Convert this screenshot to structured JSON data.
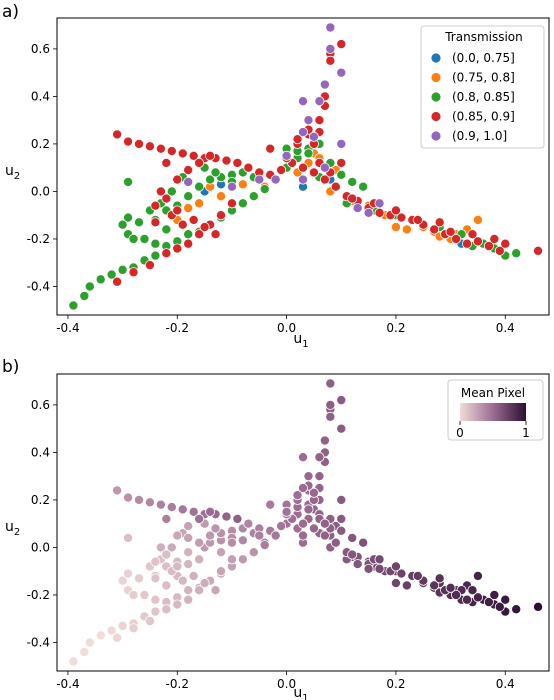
{
  "chart_data": [
    {
      "panel_label": "a)",
      "type": "scatter",
      "xlabel": "u",
      "xlabel_sub": "1",
      "ylabel": "u",
      "ylabel_sub": "2",
      "xlim": [
        -0.42,
        0.48
      ],
      "ylim": [
        -0.52,
        0.73
      ],
      "xticks": [
        "-0.4",
        "-0.2",
        "0.0",
        "0.2",
        "0.4"
      ],
      "yticks": [
        "-0.4",
        "-0.2",
        "0.0",
        "0.2",
        "0.4",
        "0.6"
      ],
      "grid": false,
      "legend": {
        "title": "Transmission",
        "placement": "top-right",
        "entries": [
          "(0.0, 0.75]",
          "(0.75, 0.8]",
          "(0.8, 0.85]",
          "(0.85, 0.9]",
          "(0.9, 1.0]"
        ],
        "colors": [
          "#1f77b4",
          "#ff7f0e",
          "#2ca02c",
          "#d62728",
          "#9467bd"
        ]
      },
      "series": [
        {
          "name": "(0.0, 0.75]",
          "color": "#1f77b4",
          "points": [
            [
              -0.12,
              0.03
            ],
            [
              0.03,
              0.02
            ],
            [
              -0.05,
              0.06
            ],
            [
              0.32,
              -0.22
            ],
            [
              0.08,
              0.05
            ],
            [
              -0.15,
              0.0
            ]
          ]
        },
        {
          "name": "(0.75, 0.8]",
          "color": "#ff7f0e",
          "points": [
            [
              -0.08,
              0.03
            ],
            [
              0.0,
              0.18
            ],
            [
              0.04,
              0.12
            ],
            [
              0.07,
              0.1
            ],
            [
              0.05,
              0.16
            ],
            [
              0.11,
              -0.05
            ],
            [
              0.2,
              -0.15
            ],
            [
              0.22,
              -0.16
            ],
            [
              0.27,
              -0.17
            ],
            [
              0.31,
              -0.18
            ],
            [
              0.35,
              -0.12
            ],
            [
              0.25,
              -0.15
            ],
            [
              0.33,
              -0.16
            ],
            [
              0.36,
              -0.22
            ],
            [
              -0.18,
              -0.07
            ],
            [
              -0.16,
              -0.05
            ],
            [
              -0.1,
              0.06
            ],
            [
              -0.12,
              -0.02
            ],
            [
              0.08,
              0.0
            ],
            [
              0.02,
              0.08
            ],
            [
              0.06,
              0.14
            ],
            [
              0.09,
              0.09
            ],
            [
              0.12,
              -0.04
            ],
            [
              0.15,
              -0.06
            ],
            [
              0.18,
              -0.1
            ],
            [
              0.28,
              -0.19
            ],
            [
              0.3,
              -0.2
            ],
            [
              -0.04,
              0.02
            ],
            [
              -0.2,
              -0.12
            ],
            [
              -0.14,
              0.02
            ]
          ]
        },
        {
          "name": "(0.8, 0.85]",
          "color": "#2ca02c",
          "points": [
            [
              -0.39,
              -0.48
            ],
            [
              -0.37,
              -0.44
            ],
            [
              -0.36,
              -0.4
            ],
            [
              -0.34,
              -0.37
            ],
            [
              -0.32,
              -0.35
            ],
            [
              -0.3,
              -0.33
            ],
            [
              -0.28,
              -0.32
            ],
            [
              -0.26,
              -0.29
            ],
            [
              -0.24,
              -0.27
            ],
            [
              -0.22,
              -0.23
            ],
            [
              -0.2,
              -0.21
            ],
            [
              -0.18,
              -0.18
            ],
            [
              -0.16,
              -0.17
            ],
            [
              -0.14,
              -0.14
            ],
            [
              -0.12,
              -0.11
            ],
            [
              -0.1,
              -0.08
            ],
            [
              -0.08,
              -0.05
            ],
            [
              -0.06,
              -0.02
            ],
            [
              -0.04,
              0.01
            ],
            [
              -0.02,
              0.05
            ],
            [
              0.0,
              0.1
            ],
            [
              0.02,
              0.14
            ],
            [
              0.04,
              0.18
            ],
            [
              -0.29,
              -0.11
            ],
            [
              -0.29,
              -0.18
            ],
            [
              -0.27,
              -0.13
            ],
            [
              -0.25,
              -0.08
            ],
            [
              -0.23,
              -0.05
            ],
            [
              -0.21,
              0.0
            ],
            [
              -0.19,
              0.06
            ],
            [
              -0.3,
              -0.14
            ],
            [
              -0.28,
              -0.2
            ],
            [
              -0.26,
              -0.2
            ],
            [
              -0.24,
              -0.12
            ],
            [
              -0.22,
              -0.08
            ],
            [
              -0.29,
              0.04
            ],
            [
              -0.2,
              -0.06
            ],
            [
              -0.18,
              -0.02
            ],
            [
              -0.16,
              0.02
            ],
            [
              -0.14,
              0.05
            ],
            [
              -0.12,
              0.06
            ],
            [
              -0.1,
              0.07
            ],
            [
              -0.08,
              0.08
            ],
            [
              -0.06,
              0.06
            ],
            [
              -0.15,
              0.1
            ],
            [
              -0.13,
              0.08
            ],
            [
              0.0,
              0.18
            ],
            [
              0.02,
              0.17
            ],
            [
              0.04,
              0.16
            ],
            [
              0.06,
              0.2
            ],
            [
              0.08,
              0.12
            ],
            [
              0.1,
              0.07
            ],
            [
              0.12,
              0.04
            ],
            [
              0.14,
              0.02
            ],
            [
              0.11,
              -0.05
            ],
            [
              0.13,
              -0.07
            ],
            [
              0.16,
              -0.08
            ],
            [
              0.2,
              -0.1
            ],
            [
              0.24,
              -0.12
            ],
            [
              0.28,
              -0.15
            ],
            [
              0.32,
              -0.18
            ],
            [
              0.36,
              -0.22
            ],
            [
              0.4,
              -0.27
            ],
            [
              0.42,
              -0.26
            ],
            [
              0.38,
              -0.24
            ],
            [
              0.34,
              -0.23
            ],
            [
              -0.24,
              -0.22
            ],
            [
              -0.22,
              -0.16
            ],
            [
              -0.1,
              0.04
            ],
            [
              -0.06,
              -0.02
            ],
            [
              0.06,
              0.06
            ],
            [
              0.09,
              0.02
            ]
          ]
        },
        {
          "name": "(0.85, 0.9]",
          "color": "#d62728",
          "points": [
            [
              -0.31,
              0.24
            ],
            [
              -0.29,
              0.21
            ],
            [
              -0.27,
              0.2
            ],
            [
              -0.25,
              0.19
            ],
            [
              -0.23,
              0.18
            ],
            [
              -0.21,
              0.17
            ],
            [
              -0.19,
              0.16
            ],
            [
              -0.17,
              0.15
            ],
            [
              -0.15,
              0.14
            ],
            [
              -0.13,
              0.14
            ],
            [
              -0.11,
              0.13
            ],
            [
              -0.09,
              0.12
            ],
            [
              -0.07,
              0.1
            ],
            [
              -0.05,
              0.08
            ],
            [
              -0.03,
              0.07
            ],
            [
              -0.01,
              0.09
            ],
            [
              0.01,
              0.12
            ],
            [
              0.03,
              0.1
            ],
            [
              0.05,
              0.08
            ],
            [
              0.07,
              0.05
            ],
            [
              0.09,
              0.02
            ],
            [
              0.11,
              -0.02
            ],
            [
              0.13,
              -0.04
            ],
            [
              0.15,
              -0.07
            ],
            [
              0.17,
              -0.09
            ],
            [
              0.19,
              -0.1
            ],
            [
              0.21,
              -0.11
            ],
            [
              0.23,
              -0.12
            ],
            [
              0.25,
              -0.14
            ],
            [
              0.27,
              -0.16
            ],
            [
              0.29,
              -0.18
            ],
            [
              0.31,
              -0.2
            ],
            [
              0.33,
              -0.22
            ],
            [
              0.35,
              -0.21
            ],
            [
              0.37,
              -0.23
            ],
            [
              0.39,
              -0.25
            ],
            [
              0.46,
              -0.25
            ],
            [
              0.08,
              0.58
            ],
            [
              0.08,
              0.55
            ],
            [
              0.07,
              0.4
            ],
            [
              0.07,
              0.36
            ],
            [
              0.06,
              0.3
            ],
            [
              0.04,
              0.24
            ],
            [
              0.02,
              0.2
            ],
            [
              -0.31,
              -0.38
            ],
            [
              -0.28,
              -0.34
            ],
            [
              -0.25,
              -0.31
            ],
            [
              -0.22,
              -0.26
            ],
            [
              -0.2,
              -0.24
            ],
            [
              -0.18,
              -0.22
            ],
            [
              -0.16,
              -0.18
            ],
            [
              -0.14,
              -0.14
            ],
            [
              -0.12,
              -0.1
            ],
            [
              -0.1,
              -0.05
            ],
            [
              -0.2,
              0.05
            ],
            [
              -0.18,
              0.09
            ],
            [
              -0.16,
              0.12
            ],
            [
              -0.14,
              0.15
            ],
            [
              -0.22,
              0.12
            ],
            [
              -0.24,
              -0.13
            ],
            [
              -0.24,
              -0.06
            ],
            [
              -0.21,
              -0.1
            ],
            [
              -0.19,
              -0.14
            ],
            [
              -0.17,
              -0.12
            ],
            [
              -0.15,
              -0.15
            ],
            [
              -0.13,
              -0.18
            ],
            [
              -0.23,
              0.0
            ],
            [
              -0.22,
              -0.03
            ],
            [
              -0.2,
              -0.08
            ],
            [
              0.0,
              0.14
            ],
            [
              0.02,
              0.22
            ],
            [
              0.05,
              0.2
            ],
            [
              0.06,
              0.12
            ],
            [
              0.08,
              0.08
            ],
            [
              0.1,
              0.12
            ],
            [
              0.1,
              0.62
            ],
            [
              0.06,
              0.25
            ],
            [
              0.04,
              0.26
            ],
            [
              -0.03,
              0.18
            ],
            [
              0.12,
              -0.03
            ],
            [
              0.16,
              -0.05
            ],
            [
              0.2,
              -0.08
            ],
            [
              0.24,
              -0.12
            ],
            [
              0.28,
              -0.13
            ],
            [
              0.3,
              -0.17
            ],
            [
              0.34,
              -0.18
            ],
            [
              0.38,
              -0.2
            ],
            [
              0.4,
              -0.22
            ]
          ]
        },
        {
          "name": "(0.9, 1.0]",
          "color": "#9467bd",
          "points": [
            [
              0.08,
              0.69
            ],
            [
              0.08,
              0.6
            ],
            [
              0.1,
              0.5
            ],
            [
              0.07,
              0.45
            ],
            [
              0.06,
              0.38
            ],
            [
              0.03,
              0.38
            ],
            [
              0.04,
              0.3
            ],
            [
              0.03,
              0.25
            ],
            [
              -0.05,
              0.05
            ],
            [
              -0.02,
              0.05
            ],
            [
              0.03,
              0.05
            ],
            [
              -0.1,
              0.02
            ],
            [
              0.0,
              0.15
            ],
            [
              0.05,
              0.23
            ],
            [
              0.07,
              0.1
            ],
            [
              -0.18,
              0.04
            ],
            [
              0.13,
              -0.07
            ],
            [
              0.17,
              -0.05
            ],
            [
              0.1,
              0.2
            ],
            [
              0.15,
              -0.09
            ]
          ]
        }
      ]
    },
    {
      "panel_label": "b)",
      "type": "scatter",
      "xlabel": "u",
      "xlabel_sub": "1",
      "ylabel": "u",
      "ylabel_sub": "2",
      "xlim": [
        -0.42,
        0.48
      ],
      "ylim": [
        -0.52,
        0.73
      ],
      "xticks": [
        "-0.4",
        "-0.2",
        "0.0",
        "0.2",
        "0.4"
      ],
      "yticks": [
        "-0.4",
        "-0.2",
        "0.0",
        "0.2",
        "0.4",
        "0.6"
      ],
      "grid": false,
      "colorbar": {
        "title": "Mean Pixel",
        "placement": "top-right",
        "min_label": "0",
        "max_label": "1",
        "color_low": "#f0dcd8",
        "color_high": "#2b0f32"
      }
    }
  ]
}
